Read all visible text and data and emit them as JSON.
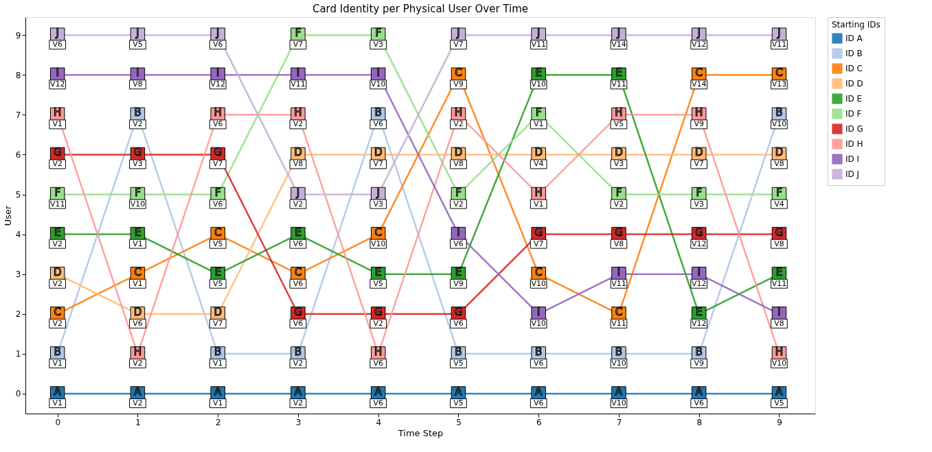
{
  "chart_data": {
    "type": "line",
    "title": "Card Identity per Physical User Over Time",
    "xlabel": "Time Step",
    "ylabel": "User",
    "legend_title": "Starting IDs",
    "x": [
      0,
      1,
      2,
      3,
      4,
      5,
      6,
      7,
      8,
      9
    ],
    "series": [
      {
        "name": "ID A",
        "color": "#1f77b4",
        "values": [
          0,
          0,
          0,
          0,
          0,
          0,
          0,
          0,
          0,
          0
        ],
        "value_labels": [
          "V1",
          "V2",
          "V1",
          "V2",
          "V6",
          "V5",
          "V6",
          "V10",
          "V6",
          "V5"
        ]
      },
      {
        "name": "ID B",
        "color": "#aec7e8",
        "values": [
          1,
          7,
          1,
          1,
          7,
          1,
          1,
          1,
          1,
          7
        ],
        "value_labels": [
          "V1",
          "V2",
          "V1",
          "V2",
          "V6",
          "V5",
          "V6",
          "V10",
          "V9",
          "V10"
        ]
      },
      {
        "name": "ID C",
        "color": "#ff7f0e",
        "values": [
          2,
          3,
          4,
          3,
          4,
          8,
          3,
          2,
          8,
          8
        ],
        "value_labels": [
          "V2",
          "V1",
          "V5",
          "V6",
          "V10",
          "V9",
          "V10",
          "V11",
          "V14",
          "V13"
        ]
      },
      {
        "name": "ID D",
        "color": "#ffbb78",
        "values": [
          3,
          2,
          2,
          6,
          6,
          6,
          6,
          6,
          6,
          6
        ],
        "value_labels": [
          "V2",
          "V6",
          "V7",
          "V8",
          "V7",
          "V8",
          "V4",
          "V3",
          "V7",
          "V8"
        ]
      },
      {
        "name": "ID E",
        "color": "#2ca02c",
        "values": [
          4,
          4,
          3,
          4,
          3,
          3,
          8,
          8,
          2,
          3
        ],
        "value_labels": [
          "V2",
          "V1",
          "V5",
          "V6",
          "V5",
          "V9",
          "V10",
          "V11",
          "V12",
          "V11"
        ]
      },
      {
        "name": "ID F",
        "color": "#98df8a",
        "values": [
          5,
          5,
          5,
          9,
          9,
          5,
          7,
          5,
          5,
          5
        ],
        "value_labels": [
          "V11",
          "V10",
          "V6",
          "V7",
          "V3",
          "V2",
          "V1",
          "V2",
          "V3",
          "V4"
        ]
      },
      {
        "name": "ID G",
        "color": "#d62728",
        "values": [
          6,
          6,
          6,
          2,
          2,
          2,
          4,
          4,
          4,
          4
        ],
        "value_labels": [
          "V2",
          "V3",
          "V7",
          "V6",
          "V2",
          "V6",
          "V7",
          "V8",
          "V12",
          "V8"
        ]
      },
      {
        "name": "ID H",
        "color": "#ff9896",
        "values": [
          7,
          1,
          7,
          7,
          1,
          7,
          5,
          7,
          7,
          1
        ],
        "value_labels": [
          "V1",
          "V2",
          "V6",
          "V2",
          "V6",
          "V2",
          "V1",
          "V5",
          "V9",
          "V10"
        ]
      },
      {
        "name": "ID I",
        "color": "#9467bd",
        "values": [
          8,
          8,
          8,
          8,
          8,
          4,
          2,
          3,
          3,
          2
        ],
        "value_labels": [
          "V12",
          "V8",
          "V12",
          "V11",
          "V10",
          "V6",
          "V10",
          "V11",
          "V12",
          "V8"
        ]
      },
      {
        "name": "ID J",
        "color": "#c5b0d5",
        "values": [
          9,
          9,
          9,
          5,
          5,
          9,
          9,
          9,
          9,
          9
        ],
        "value_labels": [
          "V6",
          "V5",
          "V6",
          "V2",
          "V3",
          "V7",
          "V11",
          "V14",
          "V12",
          "V11"
        ]
      }
    ],
    "xlim": [
      -0.4,
      9.45
    ],
    "ylim": [
      -0.5,
      9.45
    ],
    "xticks": [
      0,
      1,
      2,
      3,
      4,
      5,
      6,
      7,
      8,
      9
    ],
    "yticks": [
      0,
      1,
      2,
      3,
      4,
      5,
      6,
      7,
      8,
      9
    ],
    "annotations": [
      {
        "text": "A",
        "x": 0,
        "y": 0
      },
      {
        "text": "A",
        "x": 1,
        "y": 0
      },
      {
        "text": "A",
        "x": 2,
        "y": 0
      },
      {
        "text": "A",
        "x": 3,
        "y": 0
      },
      {
        "text": "A",
        "x": 4,
        "y": 0
      },
      {
        "text": "A",
        "x": 5,
        "y": 0
      },
      {
        "text": "A",
        "x": 6,
        "y": 0
      },
      {
        "text": "A",
        "x": 7,
        "y": 0
      },
      {
        "text": "A",
        "x": 8,
        "y": 0
      },
      {
        "text": "A",
        "x": 9,
        "y": 0
      },
      {
        "text": "B",
        "x": 0,
        "y": 1
      },
      {
        "text": "B",
        "x": 1,
        "y": 7
      },
      {
        "text": "B",
        "x": 2,
        "y": 1
      },
      {
        "text": "B",
        "x": 3,
        "y": 1
      },
      {
        "text": "B",
        "x": 4,
        "y": 7
      },
      {
        "text": "B",
        "x": 5,
        "y": 1
      },
      {
        "text": "B",
        "x": 6,
        "y": 1
      },
      {
        "text": "B",
        "x": 7,
        "y": 1
      },
      {
        "text": "B",
        "x": 8,
        "y": 1
      },
      {
        "text": "B",
        "x": 9,
        "y": 7
      },
      {
        "text": "C",
        "x": 0,
        "y": 2
      },
      {
        "text": "C",
        "x": 1,
        "y": 3
      },
      {
        "text": "C",
        "x": 2,
        "y": 4
      },
      {
        "text": "C",
        "x": 3,
        "y": 3
      },
      {
        "text": "C",
        "x": 4,
        "y": 4
      },
      {
        "text": "C",
        "x": 5,
        "y": 8
      },
      {
        "text": "C",
        "x": 6,
        "y": 3
      },
      {
        "text": "C",
        "x": 7,
        "y": 2
      },
      {
        "text": "C",
        "x": 8,
        "y": 8
      },
      {
        "text": "C",
        "x": 9,
        "y": 8
      },
      {
        "text": "D",
        "x": 0,
        "y": 3
      },
      {
        "text": "D",
        "x": 1,
        "y": 2
      },
      {
        "text": "D",
        "x": 2,
        "y": 2
      },
      {
        "text": "D",
        "x": 3,
        "y": 6
      },
      {
        "text": "D",
        "x": 4,
        "y": 6
      },
      {
        "text": "D",
        "x": 5,
        "y": 6
      },
      {
        "text": "D",
        "x": 6,
        "y": 6
      },
      {
        "text": "D",
        "x": 7,
        "y": 6
      },
      {
        "text": "D",
        "x": 8,
        "y": 6
      },
      {
        "text": "D",
        "x": 9,
        "y": 6
      },
      {
        "text": "E",
        "x": 0,
        "y": 4
      },
      {
        "text": "E",
        "x": 1,
        "y": 4
      },
      {
        "text": "E",
        "x": 2,
        "y": 3
      },
      {
        "text": "E",
        "x": 3,
        "y": 4
      },
      {
        "text": "E",
        "x": 4,
        "y": 3
      },
      {
        "text": "E",
        "x": 5,
        "y": 3
      },
      {
        "text": "E",
        "x": 6,
        "y": 8
      },
      {
        "text": "E",
        "x": 7,
        "y": 8
      },
      {
        "text": "E",
        "x": 8,
        "y": 2
      },
      {
        "text": "E",
        "x": 9,
        "y": 3
      },
      {
        "text": "F",
        "x": 0,
        "y": 5
      },
      {
        "text": "F",
        "x": 1,
        "y": 5
      },
      {
        "text": "F",
        "x": 2,
        "y": 5
      },
      {
        "text": "F",
        "x": 3,
        "y": 9
      },
      {
        "text": "F",
        "x": 4,
        "y": 9
      },
      {
        "text": "F",
        "x": 5,
        "y": 5
      },
      {
        "text": "F",
        "x": 6,
        "y": 7
      },
      {
        "text": "F",
        "x": 7,
        "y": 5
      },
      {
        "text": "F",
        "x": 8,
        "y": 5
      },
      {
        "text": "F",
        "x": 9,
        "y": 5
      },
      {
        "text": "G",
        "x": 0,
        "y": 6
      },
      {
        "text": "G",
        "x": 1,
        "y": 6
      },
      {
        "text": "G",
        "x": 2,
        "y": 6
      },
      {
        "text": "G",
        "x": 3,
        "y": 2
      },
      {
        "text": "G",
        "x": 4,
        "y": 2
      },
      {
        "text": "G",
        "x": 5,
        "y": 2
      },
      {
        "text": "G",
        "x": 6,
        "y": 4
      },
      {
        "text": "G",
        "x": 7,
        "y": 4
      },
      {
        "text": "G",
        "x": 8,
        "y": 4
      },
      {
        "text": "G",
        "x": 9,
        "y": 4
      },
      {
        "text": "H",
        "x": 0,
        "y": 7
      },
      {
        "text": "H",
        "x": 1,
        "y": 1
      },
      {
        "text": "H",
        "x": 2,
        "y": 7
      },
      {
        "text": "H",
        "x": 3,
        "y": 7
      },
      {
        "text": "H",
        "x": 4,
        "y": 1
      },
      {
        "text": "H",
        "x": 5,
        "y": 7
      },
      {
        "text": "H",
        "x": 6,
        "y": 5
      },
      {
        "text": "H",
        "x": 7,
        "y": 7
      },
      {
        "text": "H",
        "x": 8,
        "y": 7
      },
      {
        "text": "H",
        "x": 9,
        "y": 1
      },
      {
        "text": "I",
        "x": 0,
        "y": 8
      },
      {
        "text": "I",
        "x": 1,
        "y": 8
      },
      {
        "text": "I",
        "x": 2,
        "y": 8
      },
      {
        "text": "I",
        "x": 3,
        "y": 8
      },
      {
        "text": "I",
        "x": 4,
        "y": 8
      },
      {
        "text": "I",
        "x": 5,
        "y": 4
      },
      {
        "text": "I",
        "x": 6,
        "y": 2
      },
      {
        "text": "I",
        "x": 7,
        "y": 3
      },
      {
        "text": "I",
        "x": 8,
        "y": 3
      },
      {
        "text": "I",
        "x": 9,
        "y": 2
      },
      {
        "text": "J",
        "x": 0,
        "y": 9
      },
      {
        "text": "J",
        "x": 1,
        "y": 9
      },
      {
        "text": "J",
        "x": 2,
        "y": 9
      },
      {
        "text": "J",
        "x": 3,
        "y": 5
      },
      {
        "text": "J",
        "x": 4,
        "y": 5
      },
      {
        "text": "J",
        "x": 5,
        "y": 9
      },
      {
        "text": "J",
        "x": 6,
        "y": 9
      },
      {
        "text": "J",
        "x": 7,
        "y": 9
      },
      {
        "text": "J",
        "x": 8,
        "y": 9
      },
      {
        "text": "J",
        "x": 9,
        "y": 9
      }
    ],
    "marker": "square",
    "line_style": "solid",
    "grid": false,
    "legend": "top right"
  }
}
